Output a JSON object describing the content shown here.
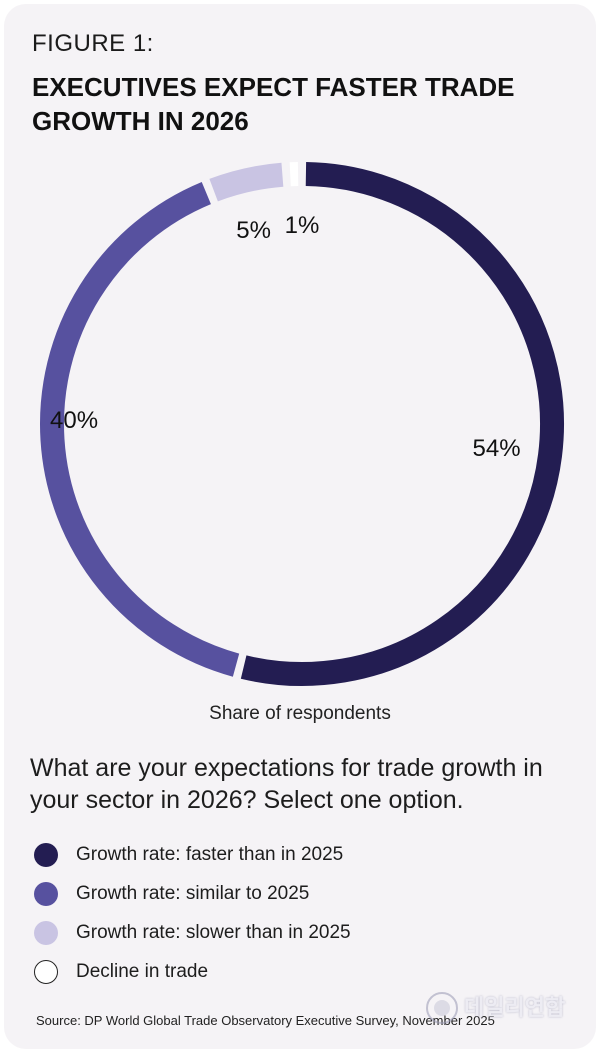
{
  "figure_label": "FIGURE 1:",
  "title": "EXECUTIVES EXPECT FASTER TRADE GROWTH IN 2026",
  "share_caption": "Share of respondents",
  "question": "What are your expectations for trade growth in your sector in 2026? Select one option.",
  "source": "Source: DP World Global Trade Observatory Executive Survey, November 2025",
  "watermark_text": "데일리연합",
  "chart_data": {
    "type": "pie",
    "donut": true,
    "title": "EXECUTIVES EXPECT FASTER TRADE GROWTH IN 2026",
    "categories": [
      "Growth rate: faster than in 2025",
      "Growth rate: similar to 2025",
      "Growth rate: slower than in 2025",
      "Decline in trade"
    ],
    "values": [
      54,
      40,
      5,
      1
    ],
    "labels": [
      "54%",
      "40%",
      "5%",
      "1%"
    ],
    "colors": [
      "#231d52",
      "#57519f",
      "#c9c4e3",
      "#ffffff"
    ],
    "legend_position": "bottom"
  }
}
